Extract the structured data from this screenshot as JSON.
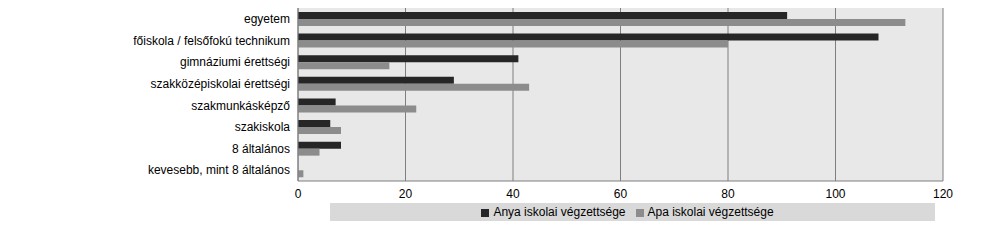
{
  "chart_data": {
    "type": "bar",
    "orientation": "horizontal",
    "categories": [
      "egyetem",
      "főiskola / felsőfokú technikum",
      "gimnáziumi érettségi",
      "szakközépiskolai érettségi",
      "szakmunkásképző",
      "szakiskola",
      "8 általános",
      "kevesebb, mint 8 általános"
    ],
    "series": [
      {
        "name": "Anya iskolai végzettsége",
        "color": "#262626",
        "values": [
          91,
          108,
          41,
          29,
          7,
          6,
          8,
          0
        ]
      },
      {
        "name": "Apa iskolai végzettsége",
        "color": "#8c8c8c",
        "values": [
          113,
          80,
          17,
          43,
          22,
          8,
          4,
          1
        ]
      }
    ],
    "xlim": [
      0,
      120
    ],
    "xticks": [
      0,
      20,
      40,
      60,
      80,
      100,
      120
    ],
    "grid": true,
    "legend": "bottom"
  }
}
